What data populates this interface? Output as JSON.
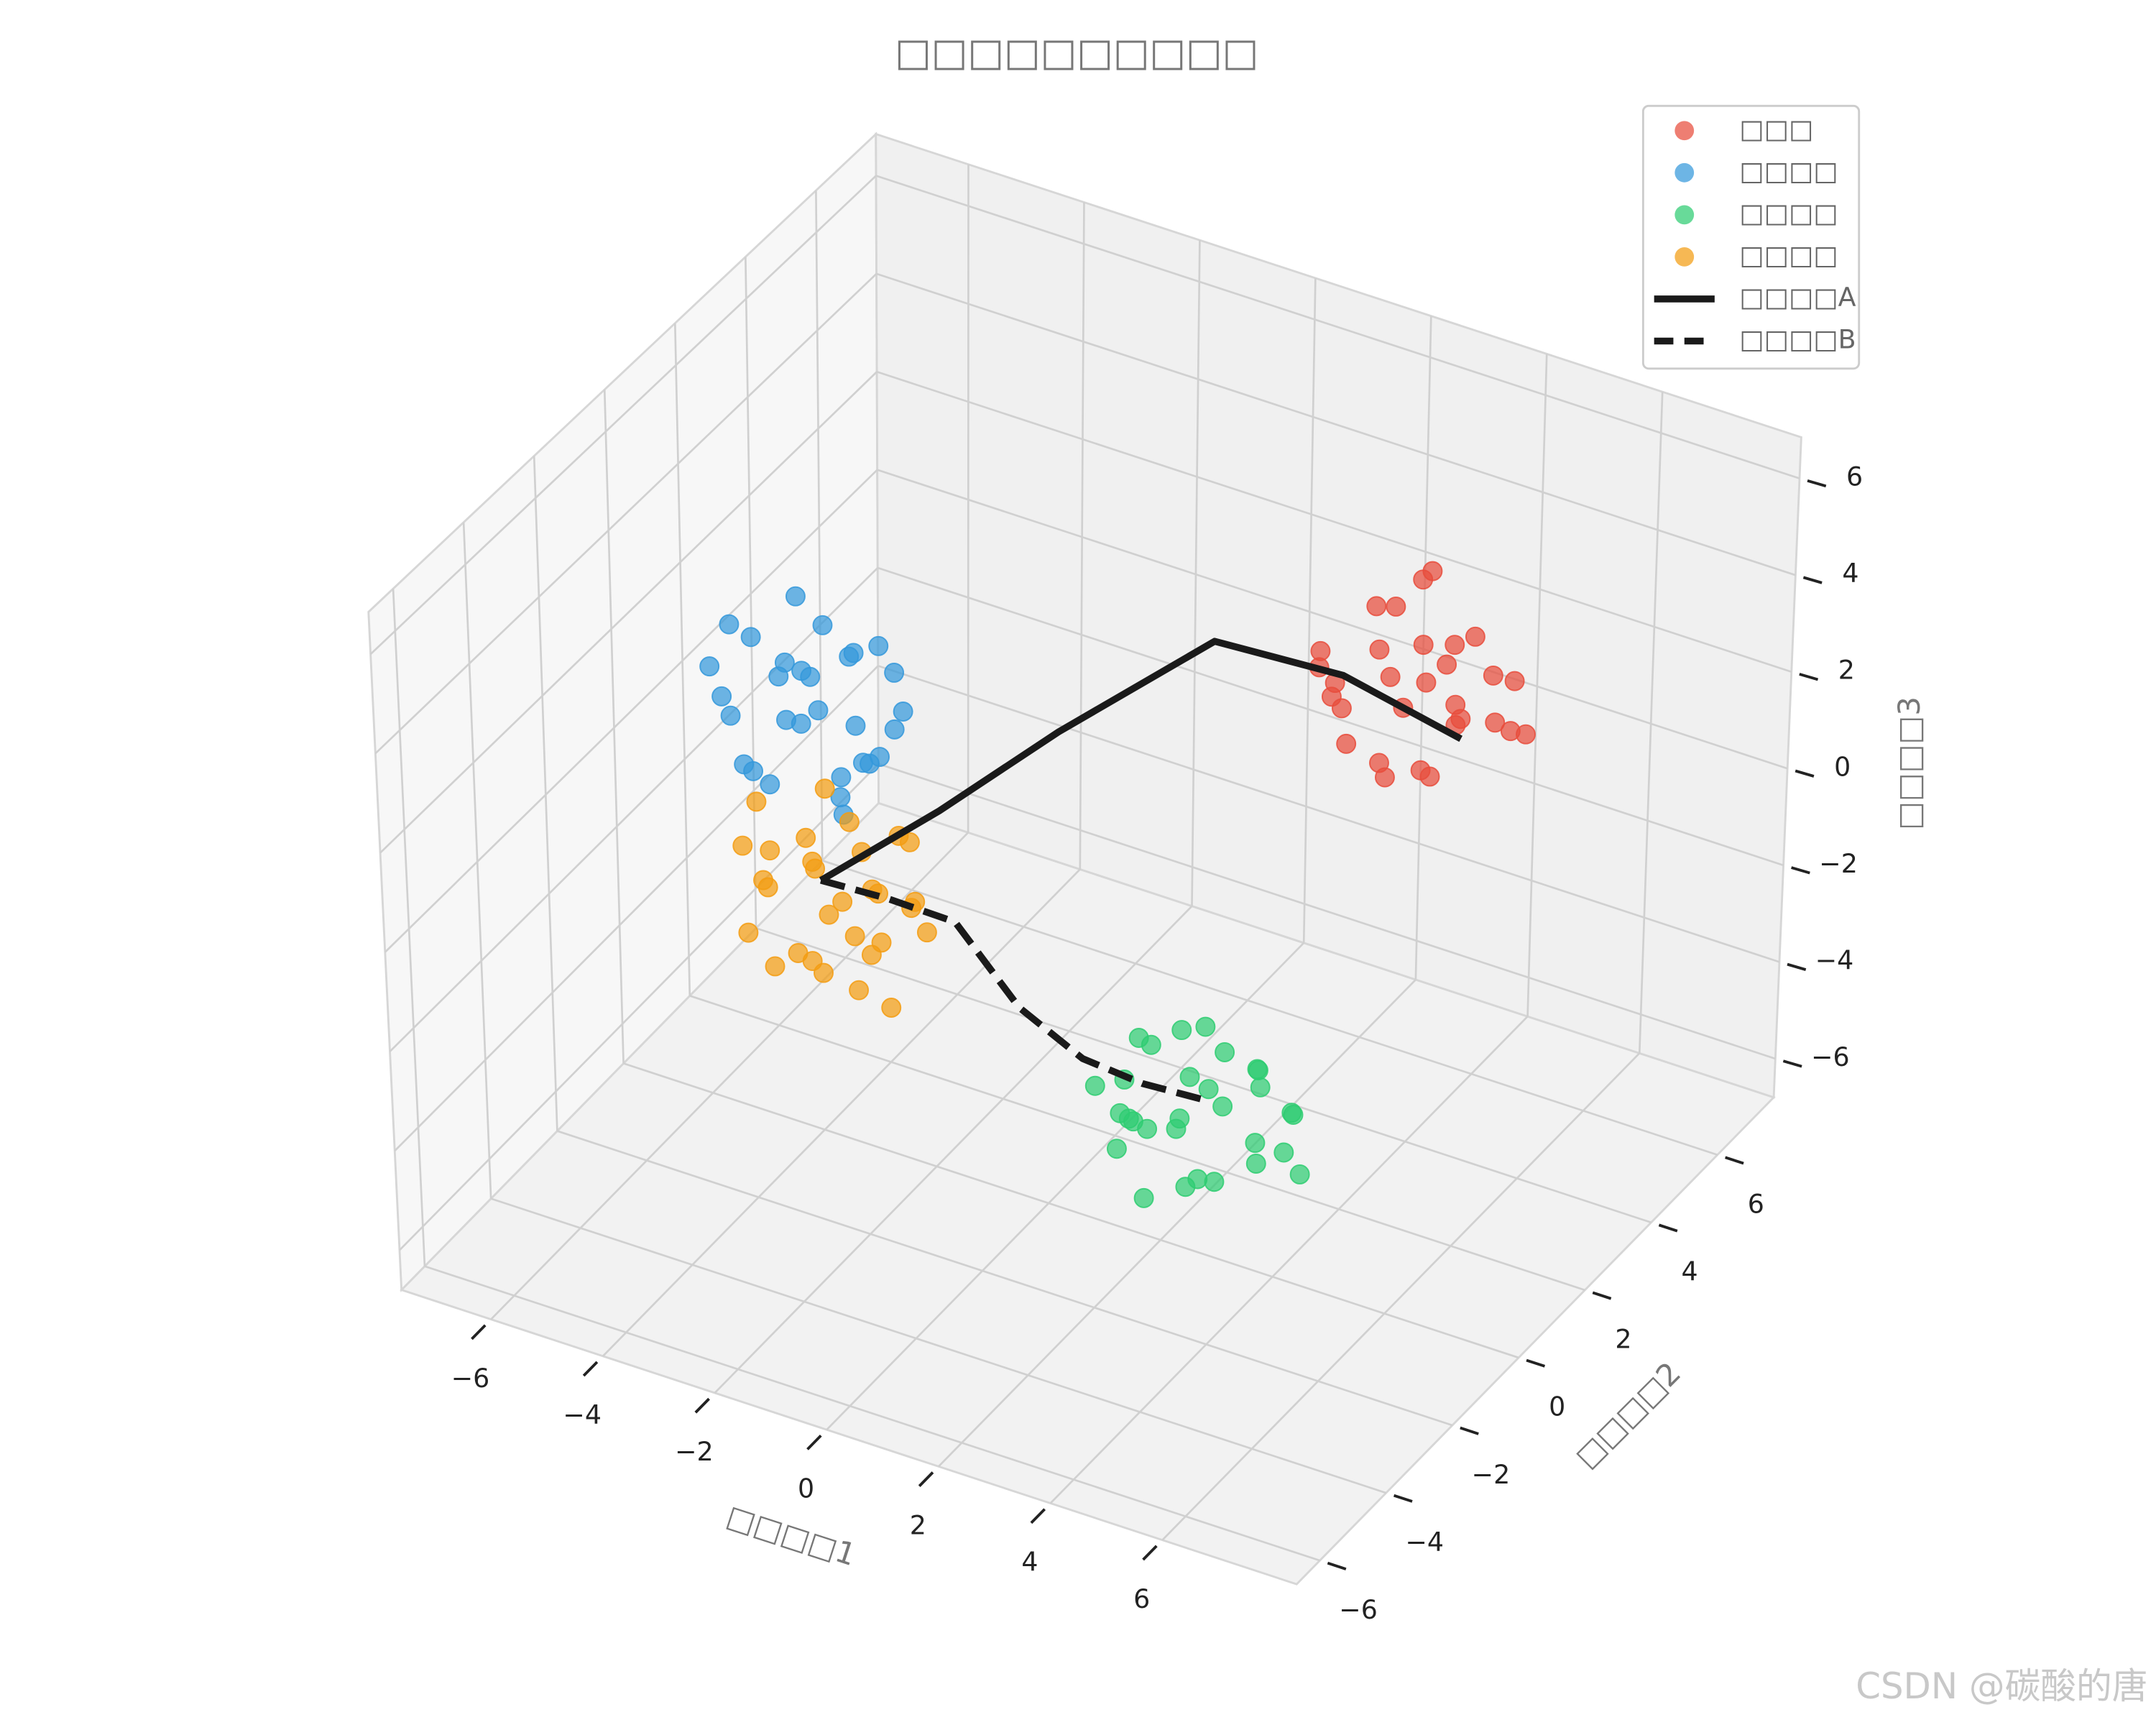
{
  "chart_data": {
    "type": "scatter3d",
    "title": "□□□□□□□□□□",
    "xlabel": "□□□□1",
    "ylabel": "□□□□2",
    "zlabel": "□□□□3",
    "watermark": "CSDN @碳酸的唐",
    "xlim": [
      -7.6,
      8.4
    ],
    "ylim": [
      -6.7,
      7.7
    ],
    "zlim": [
      -6.8,
      6.85
    ],
    "xticks": [
      {
        "value": -6,
        "label": "−6"
      },
      {
        "value": -4,
        "label": "−4"
      },
      {
        "value": -2,
        "label": "−2"
      },
      0,
      2,
      4,
      6
    ],
    "yticks": [
      {
        "value": -6,
        "label": "−6"
      },
      {
        "value": -4,
        "label": "−4"
      },
      {
        "value": -2,
        "label": "−2"
      },
      0,
      2,
      4,
      6
    ],
    "zticks": [
      {
        "value": -6,
        "label": "−6"
      },
      {
        "value": -4,
        "label": "−4"
      },
      {
        "value": -2,
        "label": "−2"
      },
      0,
      2,
      4,
      6
    ],
    "grid": true,
    "legend": "upper right",
    "series": [
      {
        "name": "□□□",
        "type": "scatter",
        "color": "#e74c3c",
        "x": [
          5.3,
          4.2,
          6.1,
          5.8,
          4.6,
          3.9,
          5.1,
          6.5,
          4.8,
          5.5,
          3.6,
          4.4,
          6.0,
          5.2,
          4.9,
          3.4,
          5.9,
          4.1,
          6.3,
          5.0,
          4.5,
          5.6,
          3.8,
          6.8,
          4.7,
          5.4,
          4.3,
          6.2,
          3.3,
          5.7
        ],
        "y": [
          2.1,
          3.0,
          2.8,
          1.5,
          2.0,
          1.8,
          3.4,
          2.2,
          2.9,
          1.2,
          2.6,
          1.4,
          3.6,
          2.5,
          1.7,
          2.3,
          2.0,
          3.3,
          3.0,
          2.7,
          2.2,
          3.1,
          1.6,
          2.6,
          3.8,
          1.9,
          2.4,
          1.7,
          2.9,
          2.4
        ],
        "z": [
          5.2,
          3.5,
          4.4,
          3.1,
          4.9,
          3.8,
          3.0,
          4.0,
          5.8,
          4.6,
          2.9,
          3.3,
          3.7,
          6.4,
          2.6,
          4.2,
          5.5,
          4.7,
          3.2,
          3.9,
          2.4,
          4.8,
          4.5,
          3.6,
          3.4,
          2.8,
          5.4,
          4.3,
          3.1,
          3.5
        ]
      },
      {
        "name": "□□□□",
        "type": "scatter",
        "color": "#3498db",
        "x": [
          -3.2,
          -2.1,
          -4.0,
          -3.5,
          -2.6,
          -4.6,
          -1.9,
          -3.0,
          -3.8,
          -2.4,
          -4.9,
          -3.3,
          -2.0,
          -3.9,
          -2.8,
          -4.3,
          -1.6,
          -3.6,
          -2.2,
          -4.5,
          -2.9,
          -3.4,
          -1.8,
          -5.2,
          -2.5,
          -3.7,
          -3.1,
          -4.1,
          -2.3,
          -3.0
        ],
        "y": [
          -1.1,
          -1.8,
          -0.9,
          -2.2,
          -0.5,
          -1.5,
          -1.2,
          -2.5,
          -0.3,
          -1.9,
          -1.0,
          -1.6,
          -0.8,
          -2.0,
          -1.3,
          -0.6,
          -1.7,
          -1.2,
          -2.3,
          -1.9,
          -0.7,
          -1.4,
          -2.1,
          -1.1,
          -1.5,
          -2.6,
          -0.4,
          -1.7,
          -1.0,
          -1.8
        ],
        "z": [
          4.5,
          2.6,
          3.3,
          1.9,
          3.9,
          2.4,
          4.1,
          3.6,
          2.0,
          1.5,
          3.8,
          2.8,
          3.0,
          4.6,
          1.7,
          2.7,
          3.4,
          5.0,
          2.2,
          3.1,
          2.3,
          3.7,
          2.9,
          2.9,
          4.4,
          2.5,
          3.5,
          1.6,
          2.1,
          4.0
        ]
      },
      {
        "name": "□□□□",
        "type": "scatter",
        "color": "#2ecc71",
        "x": [
          2.5,
          1.4,
          3.2,
          2.8,
          1.9,
          3.7,
          1.2,
          2.3,
          3.0,
          1.6,
          4.0,
          2.6,
          1.3,
          3.4,
          2.1,
          3.6,
          0.9,
          2.9,
          1.7,
          3.8,
          2.2,
          2.7,
          1.1,
          4.3,
          2.0,
          3.3,
          2.4,
          1.5,
          3.5,
          2.6
        ],
        "y": [
          0.5,
          -0.2,
          0.9,
          -0.6,
          0.8,
          0.0,
          0.4,
          -0.9,
          1.3,
          -0.4,
          0.6,
          0.1,
          0.9,
          -0.5,
          0.3,
          1.0,
          -0.1,
          0.4,
          -0.8,
          -0.2,
          1.1,
          -0.3,
          0.7,
          0.3,
          -0.5,
          0.7,
          -0.1,
          0.2,
          1.4,
          0.6
        ],
        "z": [
          -2.6,
          -4.3,
          -3.5,
          -5.0,
          -3.1,
          -4.6,
          -4.9,
          -3.8,
          -4.2,
          -3.4,
          -3.9,
          -5.4,
          -3.7,
          -3.2,
          -4.7,
          -5.1,
          -4.0,
          -2.9,
          -4.5,
          -4.0,
          -4.4,
          -3.0,
          -5.2,
          -4.8,
          -5.6,
          -3.3,
          -4.1,
          -3.0,
          -4.6,
          -5.8
        ]
      },
      {
        "name": "□□□□",
        "type": "scatter",
        "color": "#f39c12",
        "x": [
          -3.1,
          -2.2,
          -4.0,
          -3.5,
          -2.6,
          -4.4,
          -1.9,
          -3.0,
          -3.8,
          -2.4,
          -4.8,
          -3.3,
          -2.0,
          -3.9,
          -2.8,
          -4.2,
          -1.6,
          -3.6,
          -2.3,
          -4.5,
          -2.9,
          -3.4,
          -1.8,
          -5.0,
          -2.5,
          -3.7,
          -3.1,
          -4.1,
          -2.1,
          -3.0
        ],
        "y": [
          -0.6,
          -1.2,
          -0.4,
          -1.5,
          0.0,
          -1.0,
          -0.7,
          -1.9,
          0.3,
          -1.4,
          -0.5,
          -1.1,
          -0.2,
          -1.6,
          -0.9,
          0.1,
          -1.3,
          -0.8,
          -1.8,
          -1.3,
          -0.3,
          -0.8,
          -1.6,
          -0.6,
          -1.0,
          -2.0,
          0.2,
          -1.2,
          -0.5,
          -1.4
        ],
        "z": [
          0.2,
          -1.5,
          -0.6,
          -2.0,
          -0.3,
          -1.2,
          -0.9,
          -1.7,
          -2.3,
          0.4,
          -0.1,
          -2.6,
          -1.9,
          0.0,
          -2.9,
          -1.5,
          -0.5,
          -0.8,
          -1.0,
          -2.1,
          -1.3,
          0.9,
          -2.4,
          -1.0,
          -2.0,
          -0.4,
          -1.8,
          -2.7,
          0.1,
          -1.1
        ]
      },
      {
        "name": "□□□□A",
        "type": "line",
        "linestyle": "solid",
        "color": "#1a1a1a",
        "x": [
          -3.5,
          -2.0,
          -0.5,
          1.5,
          3.5,
          5.5
        ],
        "y": [
          -0.8,
          0.2,
          1.2,
          2.4,
          2.8,
          2.9
        ],
        "z": [
          -1.0,
          0.3,
          1.8,
          3.6,
          3.4,
          2.8
        ]
      },
      {
        "name": "□□□□B",
        "type": "line",
        "linestyle": "dashed",
        "color": "#1a1a1a",
        "x": [
          -3.5,
          -2.5,
          -1.5,
          -0.5,
          0.5,
          1.5,
          2.5
        ],
        "y": [
          -0.8,
          -0.5,
          -0.2,
          0.0,
          0.2,
          0.3,
          0.5
        ],
        "z": [
          -1.0,
          -1.2,
          -1.5,
          -3.0,
          -3.8,
          -4.0,
          -4.1
        ]
      }
    ]
  }
}
